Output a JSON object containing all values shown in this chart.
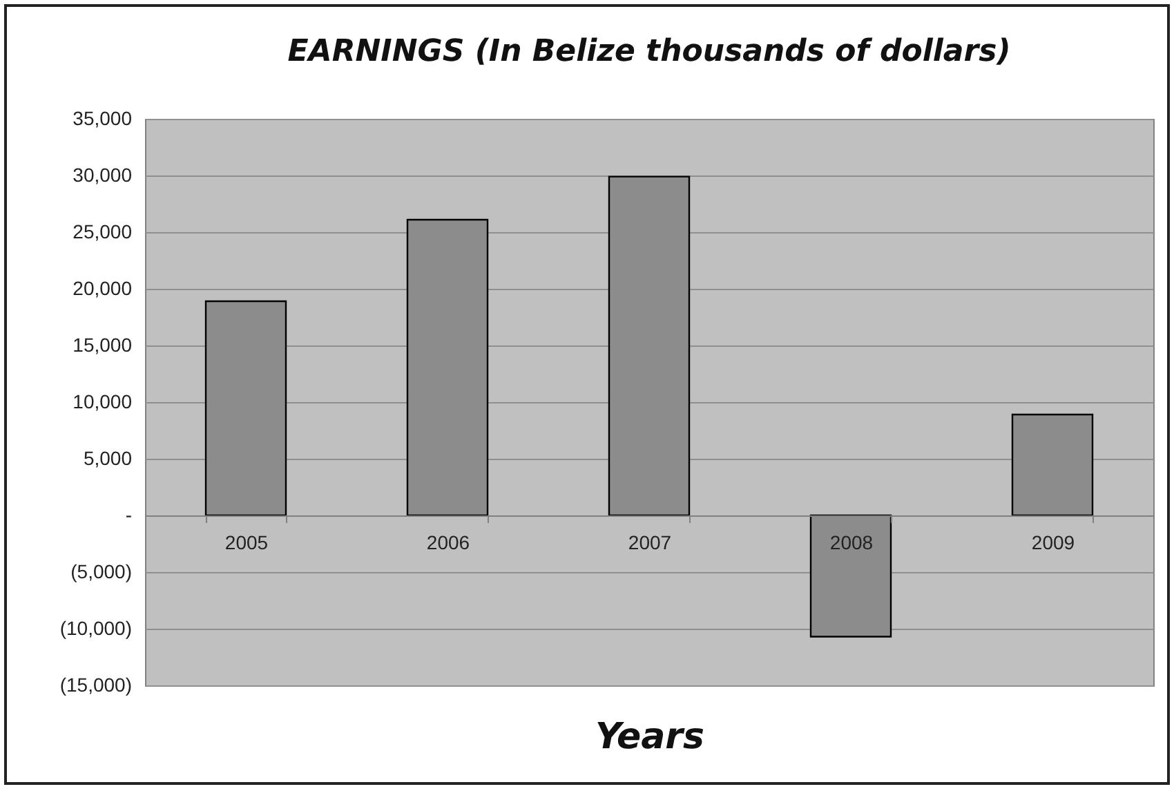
{
  "chart_data": {
    "type": "bar",
    "title": "EARNINGS (In Belize thousands of dollars)",
    "xlabel": "Years",
    "categories": [
      "2005",
      "2006",
      "2007",
      "2008",
      "2009"
    ],
    "values": [
      18900,
      26100,
      29900,
      -10700,
      8900
    ],
    "color": "#8c8c8c",
    "ylim": [
      -15000,
      35000
    ],
    "yticks": [
      {
        "value": -15000,
        "label": "(15,000)"
      },
      {
        "value": -10000,
        "label": "(10,000)"
      },
      {
        "value": -5000,
        "label": "(5,000)"
      },
      {
        "value": 0,
        "label": "-"
      },
      {
        "value": 5000,
        "label": "5,000"
      },
      {
        "value": 10000,
        "label": "10,000"
      },
      {
        "value": 15000,
        "label": "15,000"
      },
      {
        "value": 20000,
        "label": "20,000"
      },
      {
        "value": 25000,
        "label": "25,000"
      },
      {
        "value": 30000,
        "label": "30,000"
      },
      {
        "value": 35000,
        "label": "35,000"
      }
    ],
    "grid": true
  }
}
